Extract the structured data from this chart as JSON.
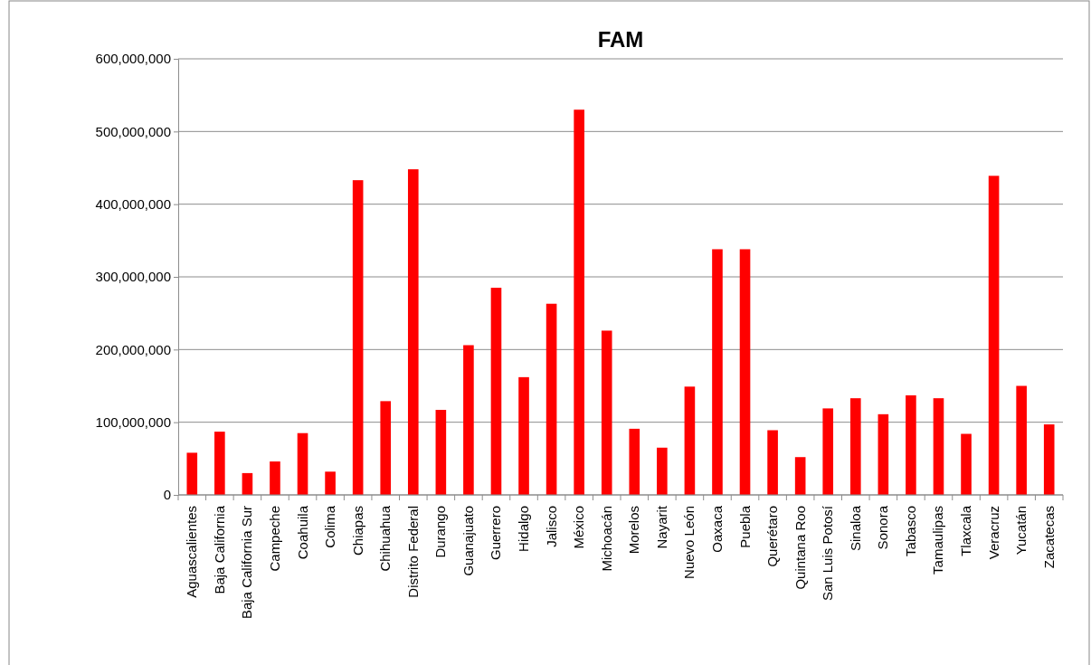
{
  "chart_data": {
    "type": "bar",
    "title": "FAM",
    "categories": [
      "Aguascalientes",
      "Baja California",
      "Baja California Sur",
      "Campeche",
      "Coahuila",
      "Colima",
      "Chiapas",
      "Chihuahua",
      "Distrito Federal",
      "Durango",
      "Guanajuato",
      "Guerrero",
      "Hidalgo",
      "Jalisco",
      "México",
      "Michoacán",
      "Morelos",
      "Nayarit",
      "Nuevo León",
      "Oaxaca",
      "Puebla",
      "Querétaro",
      "Quintana Roo",
      "San Luis Potosí",
      "Sinaloa",
      "Sonora",
      "Tabasco",
      "Tamaulipas",
      "Tlaxcala",
      "Veracruz",
      "Yucatán",
      "Zacatecas"
    ],
    "values": [
      58000000,
      87000000,
      30000000,
      46000000,
      85000000,
      32000000,
      433000000,
      129000000,
      448000000,
      117000000,
      206000000,
      285000000,
      162000000,
      263000000,
      530000000,
      226000000,
      91000000,
      65000000,
      149000000,
      338000000,
      338000000,
      89000000,
      52000000,
      119000000,
      133000000,
      111000000,
      137000000,
      133000000,
      84000000,
      439000000,
      150000000,
      97000000
    ],
    "color": "#ff0000",
    "ylim": [
      0,
      600000000
    ],
    "yticks": [
      {
        "value": 0,
        "label": "0"
      },
      {
        "value": 100000000,
        "label": "100,000,000"
      },
      {
        "value": 200000000,
        "label": "200,000,000"
      },
      {
        "value": 300000000,
        "label": "300,000,000"
      },
      {
        "value": 400000000,
        "label": "400,000,000"
      },
      {
        "value": 500000000,
        "label": "500,000,000"
      },
      {
        "value": 600000000,
        "label": "600,000,000"
      }
    ],
    "grid": "y"
  }
}
